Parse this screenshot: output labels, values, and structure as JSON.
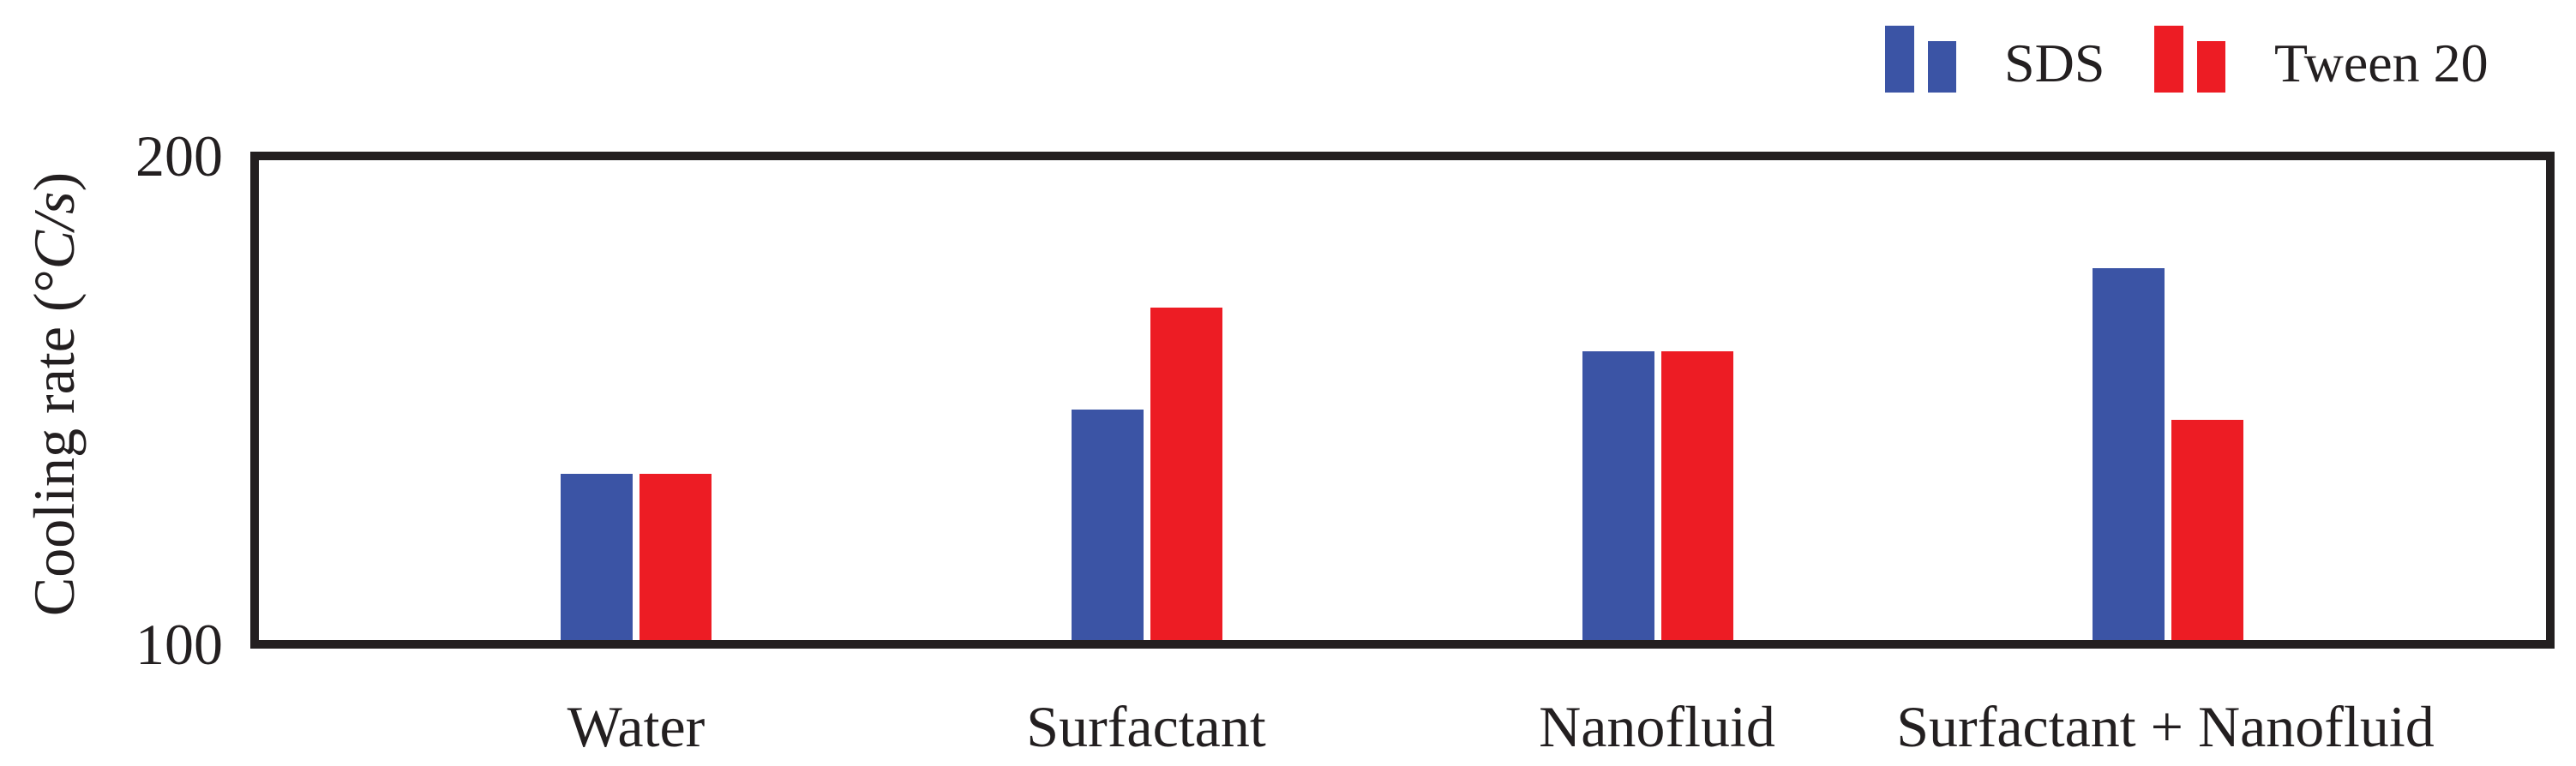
{
  "chart_data": {
    "type": "bar",
    "title": "",
    "categories": [
      "Water",
      "Surfactant",
      "Nanofluid",
      "Surfactant + Nanofluid"
    ],
    "series": [
      {
        "name": "SDS",
        "color": "#3B54A5",
        "values": [
          135,
          148,
          160,
          177
        ]
      },
      {
        "name": "Tween 20",
        "color": "#ED1C24",
        "values": [
          135,
          169,
          160,
          146
        ]
      }
    ],
    "xlabel": "",
    "ylabel": "Cooling rate (°C/s)",
    "ylim": [
      100,
      200
    ],
    "yticks": [
      100,
      200
    ],
    "grid": false,
    "legend_position": "top-right",
    "frame_color": "#231F20"
  },
  "axes": {
    "y_title_prefix": "Cooling rate (°",
    "y_title_unit": "C/s",
    "y_title_suffix": ")",
    "y_tick_top": "200",
    "y_tick_bottom": "100"
  },
  "legend": {
    "items": [
      {
        "label": "SDS",
        "color": "#3B54A5"
      },
      {
        "label": "Tween 20",
        "color": "#ED1C24"
      }
    ]
  }
}
